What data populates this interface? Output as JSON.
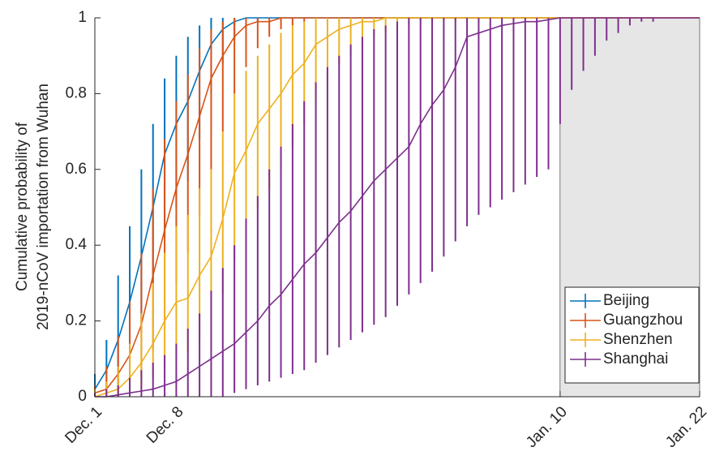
{
  "chart_data": {
    "type": "errorbar-line",
    "ylabel": [
      "Cumulative probability of",
      "2019-nCoV importation from Wuhan"
    ],
    "x": [
      1,
      2,
      3,
      4,
      5,
      6,
      7,
      8,
      9,
      10,
      11,
      12,
      13,
      14,
      15,
      16,
      17,
      18,
      19,
      20,
      21,
      22,
      23,
      24,
      25,
      26,
      27,
      28,
      29,
      30,
      31,
      32,
      33,
      34,
      35,
      36,
      37,
      38,
      39,
      40,
      41,
      42,
      43,
      44,
      45,
      46,
      47,
      48,
      49,
      50,
      51,
      52,
      53
    ],
    "xlim": [
      1,
      53
    ],
    "xticks": [
      {
        "value": 1,
        "label": "Dec. 1"
      },
      {
        "value": 8,
        "label": "Dec. 8"
      },
      {
        "value": 41,
        "label": "Jan. 10"
      },
      {
        "value": 53,
        "label": "Jan. 22"
      }
    ],
    "ylim": [
      0,
      1
    ],
    "yticks": [
      0,
      0.2,
      0.4,
      0.6,
      0.8,
      1
    ],
    "shaded_xrange": [
      41,
      53
    ],
    "legend_position": "lower-right",
    "series": [
      {
        "name": "Beijing",
        "color": "#0072BD",
        "values": [
          0.02,
          0.07,
          0.15,
          0.25,
          0.37,
          0.5,
          0.64,
          0.72,
          0.78,
          0.86,
          0.93,
          0.97,
          0.99,
          1,
          1,
          1,
          1,
          1,
          1,
          1,
          1,
          1,
          1,
          1,
          1,
          1,
          1,
          1,
          1,
          1,
          1,
          1,
          1,
          1,
          1,
          1,
          1,
          1,
          1,
          1,
          1,
          1,
          1,
          1,
          1,
          1,
          1,
          1,
          1,
          1,
          1,
          1,
          1
        ],
        "lower": [
          0,
          0,
          0.02,
          0.08,
          0.17,
          0.3,
          0.42,
          0.5,
          0.57,
          0.68,
          0.8,
          0.88,
          0.94,
          0.97,
          0.99,
          1,
          1,
          1,
          1,
          1,
          1,
          1,
          1,
          1,
          1,
          1,
          1,
          1,
          1,
          1,
          1,
          1,
          1,
          1,
          1,
          1,
          1,
          1,
          1,
          1,
          1,
          1,
          1,
          1,
          1,
          1,
          1,
          1,
          1,
          1,
          1,
          1,
          1
        ],
        "upper": [
          0.06,
          0.15,
          0.32,
          0.45,
          0.6,
          0.72,
          0.84,
          0.9,
          0.95,
          0.98,
          1,
          1,
          1,
          1,
          1,
          1,
          1,
          1,
          1,
          1,
          1,
          1,
          1,
          1,
          1,
          1,
          1,
          1,
          1,
          1,
          1,
          1,
          1,
          1,
          1,
          1,
          1,
          1,
          1,
          1,
          1,
          1,
          1,
          1,
          1,
          1,
          1,
          1,
          1,
          1,
          1,
          1,
          1
        ]
      },
      {
        "name": "Guangzhou",
        "color": "#D95319",
        "values": [
          0.01,
          0.02,
          0.06,
          0.11,
          0.19,
          0.32,
          0.44,
          0.55,
          0.64,
          0.74,
          0.84,
          0.9,
          0.95,
          0.98,
          0.99,
          0.99,
          1,
          1,
          1,
          1,
          1,
          1,
          1,
          1,
          1,
          1,
          1,
          1,
          1,
          1,
          1,
          1,
          1,
          1,
          1,
          1,
          1,
          1,
          1,
          1,
          1,
          1,
          1,
          1,
          1,
          1,
          1,
          1,
          1,
          1,
          1,
          1,
          1
        ],
        "lower": [
          0,
          0,
          0,
          0.02,
          0.05,
          0.12,
          0.2,
          0.3,
          0.38,
          0.48,
          0.6,
          0.7,
          0.8,
          0.87,
          0.92,
          0.95,
          0.97,
          0.98,
          0.99,
          1,
          1,
          1,
          1,
          1,
          1,
          1,
          1,
          1,
          1,
          1,
          1,
          1,
          1,
          1,
          1,
          1,
          1,
          1,
          1,
          1,
          1,
          1,
          1,
          1,
          1,
          1,
          1,
          1,
          1,
          1,
          1,
          1,
          1
        ],
        "upper": [
          0.03,
          0.08,
          0.16,
          0.25,
          0.38,
          0.55,
          0.68,
          0.78,
          0.85,
          0.92,
          0.97,
          0.99,
          1,
          1,
          1,
          1,
          1,
          1,
          1,
          1,
          1,
          1,
          1,
          1,
          1,
          1,
          1,
          1,
          1,
          1,
          1,
          1,
          1,
          1,
          1,
          1,
          1,
          1,
          1,
          1,
          1,
          1,
          1,
          1,
          1,
          1,
          1,
          1,
          1,
          1,
          1,
          1,
          1
        ]
      },
      {
        "name": "Shenzhen",
        "color": "#EDB120",
        "values": [
          0,
          0.01,
          0.02,
          0.05,
          0.09,
          0.14,
          0.2,
          0.25,
          0.26,
          0.32,
          0.37,
          0.47,
          0.59,
          0.65,
          0.72,
          0.76,
          0.8,
          0.85,
          0.88,
          0.93,
          0.95,
          0.97,
          0.98,
          0.99,
          0.99,
          1,
          1,
          1,
          1,
          1,
          1,
          1,
          1,
          1,
          1,
          1,
          1,
          1,
          1,
          1,
          1,
          1,
          1,
          1,
          1,
          1,
          1,
          1,
          1,
          1,
          1,
          1,
          1
        ],
        "lower": [
          0,
          0,
          0,
          0.01,
          0.02,
          0.05,
          0.08,
          0.1,
          0.12,
          0.15,
          0.2,
          0.27,
          0.36,
          0.43,
          0.5,
          0.55,
          0.6,
          0.66,
          0.72,
          0.78,
          0.83,
          0.88,
          0.9,
          0.93,
          0.95,
          0.96,
          0.97,
          0.98,
          0.99,
          0.99,
          0.99,
          0.99,
          0.99,
          0.99,
          1,
          1,
          1,
          1,
          1,
          1,
          1,
          1,
          1,
          1,
          1,
          1,
          1,
          1,
          1,
          1,
          1,
          1,
          1
        ],
        "upper": [
          0.02,
          0.04,
          0.08,
          0.14,
          0.22,
          0.3,
          0.38,
          0.45,
          0.48,
          0.55,
          0.6,
          0.7,
          0.8,
          0.86,
          0.9,
          0.93,
          0.96,
          0.98,
          0.99,
          1,
          1,
          1,
          1,
          1,
          1,
          1,
          1,
          1,
          1,
          1,
          1,
          1,
          1,
          1,
          1,
          1,
          1,
          1,
          1,
          1,
          1,
          1,
          1,
          1,
          1,
          1,
          1,
          1,
          1,
          1,
          1,
          1,
          1
        ]
      },
      {
        "name": "Shanghai",
        "color": "#7E2F8E",
        "values": [
          0,
          0,
          0.005,
          0.01,
          0.015,
          0.02,
          0.03,
          0.04,
          0.06,
          0.08,
          0.1,
          0.12,
          0.14,
          0.17,
          0.2,
          0.24,
          0.27,
          0.31,
          0.35,
          0.38,
          0.42,
          0.46,
          0.49,
          0.53,
          0.57,
          0.6,
          0.63,
          0.66,
          0.72,
          0.77,
          0.81,
          0.87,
          0.95,
          0.96,
          0.97,
          0.98,
          0.985,
          0.99,
          0.99,
          0.995,
          1,
          1,
          1,
          1,
          1,
          1,
          1,
          1,
          1,
          1,
          1,
          1,
          1
        ],
        "lower": [
          0,
          0,
          0,
          0,
          0,
          0,
          0,
          0,
          0,
          0,
          0,
          0,
          0.01,
          0.02,
          0.03,
          0.04,
          0.05,
          0.06,
          0.07,
          0.09,
          0.11,
          0.13,
          0.15,
          0.17,
          0.19,
          0.21,
          0.24,
          0.27,
          0.3,
          0.33,
          0.37,
          0.41,
          0.45,
          0.48,
          0.5,
          0.52,
          0.54,
          0.56,
          0.58,
          0.6,
          0.72,
          0.81,
          0.86,
          0.9,
          0.94,
          0.96,
          0.98,
          0.99,
          0.99,
          1,
          1,
          1,
          1
        ],
        "upper": [
          0.01,
          0.02,
          0.03,
          0.05,
          0.07,
          0.09,
          0.11,
          0.14,
          0.18,
          0.22,
          0.28,
          0.34,
          0.4,
          0.47,
          0.53,
          0.6,
          0.66,
          0.72,
          0.78,
          0.83,
          0.87,
          0.9,
          0.93,
          0.95,
          0.97,
          0.98,
          0.99,
          1,
          1,
          1,
          1,
          1,
          1,
          1,
          1,
          1,
          1,
          1,
          1,
          1,
          1,
          1,
          1,
          1,
          1,
          1,
          1,
          1,
          1,
          1,
          1,
          1,
          1
        ]
      }
    ]
  }
}
